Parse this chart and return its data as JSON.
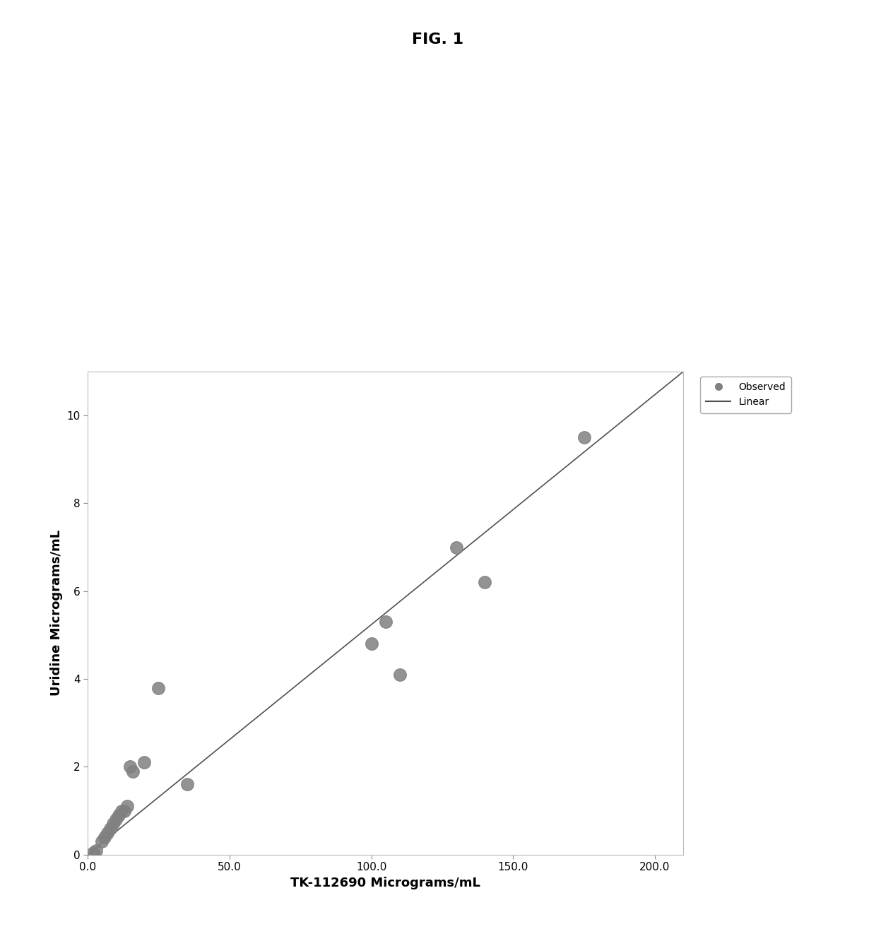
{
  "title": "FIG. 1",
  "xlabel": "TK-112690 Micrograms/mL",
  "ylabel": "Uridine Micrograms/mL",
  "scatter_x": [
    2,
    3,
    5,
    6,
    7,
    8,
    9,
    10,
    11,
    12,
    13,
    14,
    15,
    16,
    20,
    25,
    35,
    100,
    105,
    110,
    130,
    140,
    175
  ],
  "scatter_y": [
    0.05,
    0.1,
    0.3,
    0.4,
    0.5,
    0.6,
    0.7,
    0.8,
    0.9,
    1.0,
    1.0,
    1.1,
    2.0,
    1.9,
    2.1,
    3.8,
    1.6,
    4.8,
    5.3,
    4.1,
    7.0,
    6.2,
    9.5
  ],
  "xlim": [
    0.0,
    210.0
  ],
  "ylim": [
    0,
    11.0
  ],
  "xticks": [
    0.0,
    50.0,
    100.0,
    150.0,
    200.0
  ],
  "yticks": [
    0,
    2,
    4,
    6,
    8,
    10
  ],
  "line_x": [
    0,
    210
  ],
  "line_y": [
    0,
    11.0
  ],
  "scatter_color": "#808080",
  "line_color": "#505050",
  "background_color": "#ffffff",
  "legend_observed": "Observed",
  "legend_linear": "Linear",
  "title_fontsize": 16,
  "label_fontsize": 13,
  "tick_fontsize": 11,
  "figure_width": 12.4,
  "figure_height": 13.15
}
